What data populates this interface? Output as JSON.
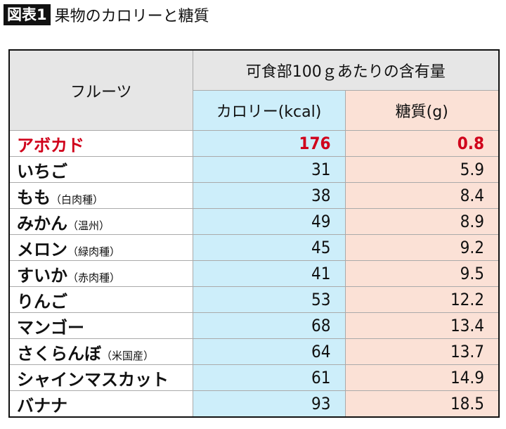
{
  "title": {
    "badge": "図表1",
    "text": "果物のカロリーと糖質"
  },
  "colors": {
    "header_gray": "#e6e6e6",
    "calorie_col": "#cdeefa",
    "carb_col": "#fbe1d6",
    "highlight": "#d0021b"
  },
  "chart_data": {
    "type": "table",
    "title": "果物のカロリーと糖質",
    "headers": {
      "fruit": "フルーツ",
      "group": "可食部100ｇあたりの含有量",
      "calorie": "カロリー(kcal)",
      "carb": "糖質(g)"
    },
    "rows": [
      {
        "name": "アボカド",
        "note": "",
        "calorie": "176",
        "carb": "0.8",
        "highlight": true
      },
      {
        "name": "いちご",
        "note": "",
        "calorie": "31",
        "carb": "5.9"
      },
      {
        "name": "もも",
        "note": "（白肉種）",
        "calorie": "38",
        "carb": "8.4"
      },
      {
        "name": "みかん",
        "note": "（温州）",
        "calorie": "49",
        "carb": "8.9"
      },
      {
        "name": "メロン",
        "note": "（緑肉種）",
        "calorie": "45",
        "carb": "9.2"
      },
      {
        "name": "すいか",
        "note": "（赤肉種）",
        "calorie": "41",
        "carb": "9.5"
      },
      {
        "name": "りんご",
        "note": "",
        "calorie": "53",
        "carb": "12.2"
      },
      {
        "name": "マンゴー",
        "note": "",
        "calorie": "68",
        "carb": "13.4"
      },
      {
        "name": "さくらんぼ",
        "note": "（米国産）",
        "calorie": "64",
        "carb": "13.7"
      },
      {
        "name": "シャインマスカット",
        "note": "",
        "calorie": "61",
        "carb": "14.9"
      },
      {
        "name": "バナナ",
        "note": "",
        "calorie": "93",
        "carb": "18.5"
      }
    ]
  }
}
